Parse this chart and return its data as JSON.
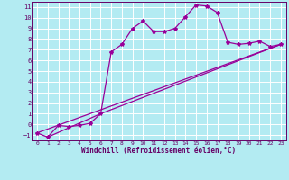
{
  "xlabel": "Windchill (Refroidissement éolien,°C)",
  "background_color": "#b3ebf2",
  "plot_bg_color": "#b3ebf2",
  "line_color": "#990099",
  "grid_color": "#ffffff",
  "axis_color": "#660066",
  "x_ticks": [
    0,
    1,
    2,
    3,
    4,
    5,
    6,
    7,
    8,
    9,
    10,
    11,
    12,
    13,
    14,
    15,
    16,
    17,
    18,
    19,
    20,
    21,
    22,
    23
  ],
  "y_ticks": [
    -1,
    0,
    1,
    2,
    3,
    4,
    5,
    6,
    7,
    8,
    9,
    10,
    11
  ],
  "xlim": [
    -0.5,
    23.5
  ],
  "ylim": [
    -1.5,
    11.5
  ],
  "line1_x": [
    0,
    1,
    2,
    3,
    4,
    5,
    6,
    7,
    8,
    9,
    10,
    11,
    12,
    13,
    14,
    15,
    16,
    17,
    18,
    19,
    20,
    21,
    22,
    23
  ],
  "line1_y": [
    -0.8,
    -1.2,
    -0.1,
    -0.2,
    -0.1,
    0.1,
    1.0,
    6.8,
    7.5,
    9.0,
    9.7,
    8.7,
    8.7,
    9.0,
    10.1,
    11.2,
    11.1,
    10.5,
    7.7,
    7.5,
    7.6,
    7.8,
    7.3,
    7.5
  ],
  "line2_x": [
    0,
    23
  ],
  "line2_y": [
    -0.8,
    7.5
  ],
  "line3_x": [
    1,
    6,
    23
  ],
  "line3_y": [
    -1.2,
    1.0,
    7.5
  ],
  "marker": "*",
  "marker_size": 3,
  "linewidth": 0.9
}
